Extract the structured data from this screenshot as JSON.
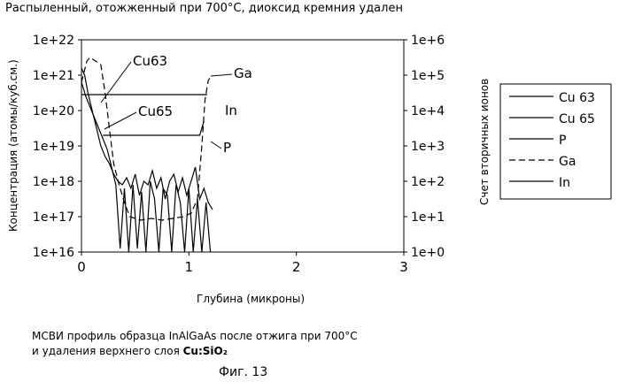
{
  "top_title": "Распыленный, отожженный при 700°С, диоксид кремния удален",
  "caption": {
    "line1": "МСВИ профиль образца InAlGaAs после отжига при 700°С",
    "line2_prefix": "и удаления верхнего слоя ",
    "line2_bold": "Cu:SiO₂"
  },
  "figure_label": "Фиг. 13",
  "chart_data": {
    "type": "line",
    "title": "Распыленный, отожженный при 700°С, диоксид кремния удален",
    "xlabel": "Глубина (микроны)",
    "ylabel_left": "Концентрация (атомы/куб.см.)",
    "ylabel_right": "Счет вторичных ионов",
    "xlim": [
      0,
      3
    ],
    "x_ticks": [
      "0",
      "1",
      "2",
      "3"
    ],
    "y_left_log10_range": [
      16,
      22
    ],
    "y_left_ticks": [
      "1e+16",
      "1e+17",
      "1e+18",
      "1e+19",
      "1e+20",
      "1e+21",
      "1e+22"
    ],
    "y_right_log10_range": [
      0,
      6
    ],
    "y_right_ticks": [
      "1e+0",
      "1e+1",
      "1e+2",
      "1e+3",
      "1e+4",
      "1e+5",
      "1e+6"
    ],
    "legend": [
      {
        "label": "Cu 63",
        "style": "solid"
      },
      {
        "label": "Cu 65",
        "style": "solid"
      },
      {
        "label": "P",
        "style": "solid"
      },
      {
        "label": "Ga",
        "style": "dashed"
      },
      {
        "label": "In",
        "style": "solid"
      }
    ],
    "annotations": [
      "Cu63",
      "Cu65",
      "Ga",
      "In",
      "P"
    ],
    "series": [
      {
        "name": "Ga",
        "axis": "right",
        "style": "dashed",
        "x": [
          0.0,
          0.05,
          0.08,
          0.18,
          0.22,
          0.26,
          0.3,
          0.35,
          0.4,
          0.45,
          0.55,
          0.65,
          0.75,
          0.85,
          0.95,
          1.02,
          1.08,
          1.12,
          1.15,
          1.18,
          1.2
        ],
        "log10": [
          4.8,
          5.4,
          5.5,
          5.3,
          4.5,
          3.5,
          2.5,
          1.9,
          1.4,
          1.0,
          0.9,
          0.95,
          0.9,
          0.95,
          1.0,
          1.1,
          1.5,
          3.0,
          4.3,
          4.85,
          4.95
        ]
      },
      {
        "name": "In",
        "axis": "right",
        "style": "solid",
        "x": [
          0.0,
          0.05,
          1.15,
          1.17
        ],
        "log10": [
          4.45,
          4.45,
          4.45,
          4.45
        ]
      },
      {
        "name": "P",
        "axis": "right",
        "style": "solid",
        "x": [
          0.2,
          0.28,
          1.1,
          1.14
        ],
        "log10": [
          3.3,
          3.3,
          3.3,
          3.7
        ]
      },
      {
        "name": "Cu 63",
        "axis": "left",
        "style": "solid",
        "x": [
          0.0,
          0.03,
          0.06,
          0.1,
          0.14,
          0.18,
          0.22,
          0.26,
          0.3,
          0.34,
          0.38,
          0.42,
          0.46,
          0.5,
          0.54,
          0.58,
          0.62,
          0.66,
          0.7,
          0.74,
          0.78,
          0.82,
          0.86,
          0.9,
          0.94,
          0.98,
          1.02,
          1.06,
          1.1,
          1.14,
          1.18,
          1.22
        ],
        "log10": [
          21.2,
          21.0,
          20.5,
          20.0,
          19.5,
          19.0,
          18.7,
          18.5,
          18.2,
          18.0,
          17.9,
          18.1,
          17.8,
          18.2,
          17.6,
          18.0,
          17.9,
          18.3,
          17.8,
          18.1,
          17.5,
          18.0,
          18.2,
          17.7,
          18.1,
          17.6,
          18.0,
          18.4,
          17.5,
          17.8,
          17.4,
          17.2
        ]
      },
      {
        "name": "Cu 65",
        "axis": "left",
        "style": "solid",
        "x": [
          0.0,
          0.04,
          0.08,
          0.12,
          0.16,
          0.2,
          0.24,
          0.28,
          0.32,
          0.36,
          0.4,
          0.44,
          0.48,
          0.52,
          0.56,
          0.6,
          0.64,
          0.68,
          0.72,
          0.76,
          0.8,
          0.84,
          0.88,
          0.92,
          0.96,
          1.0,
          1.04,
          1.08,
          1.12,
          1.16,
          1.2
        ],
        "log10": [
          20.8,
          20.4,
          20.1,
          19.8,
          19.5,
          19.2,
          18.9,
          18.4,
          17.9,
          16.1,
          17.8,
          16.0,
          17.9,
          16.1,
          17.7,
          16.0,
          18.0,
          17.5,
          16.0,
          17.8,
          17.6,
          16.0,
          17.9,
          17.4,
          16.0,
          17.8,
          16.0,
          17.5,
          16.0,
          17.4,
          16.0
        ]
      }
    ]
  }
}
